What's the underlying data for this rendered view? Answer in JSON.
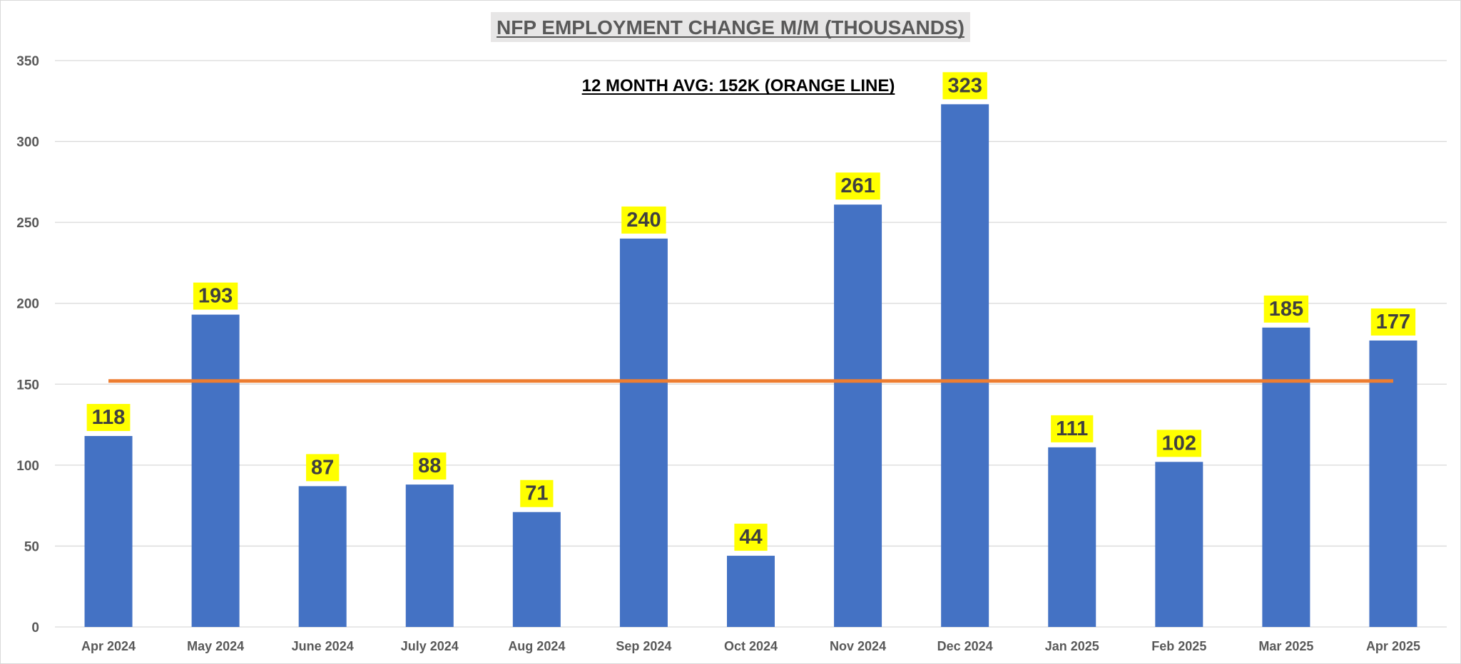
{
  "chart_data": {
    "type": "bar",
    "title": "NFP EMPLOYMENT CHANGE M/M (THOUSANDS)",
    "annotation": "12 MONTH AVG: 152K (ORANGE LINE)",
    "categories": [
      "Apr 2024",
      "May 2024",
      "June 2024",
      "July 2024",
      "Aug 2024",
      "Sep 2024",
      "Oct 2024",
      "Nov 2024",
      "Dec 2024",
      "Jan 2025",
      "Feb 2025",
      "Mar 2025",
      "Apr 2025"
    ],
    "values": [
      118,
      193,
      87,
      88,
      71,
      240,
      44,
      261,
      323,
      111,
      102,
      185,
      177
    ],
    "data_labels": [
      "118",
      "193",
      "87",
      "88",
      "71",
      "240",
      "44",
      "261",
      "323",
      "111",
      "102",
      "185",
      "177"
    ],
    "average_line": 152,
    "ylim": [
      0,
      350
    ],
    "yticks": [
      0,
      50,
      100,
      150,
      200,
      250,
      300,
      350
    ],
    "ytick_labels": [
      "0",
      "50",
      "100",
      "150",
      "200",
      "250",
      "300",
      "350"
    ],
    "grid": true,
    "xlabel": "",
    "ylabel": "",
    "colors": {
      "bar": "#4472C4",
      "average_line": "#ED7D31",
      "data_label_bg": "#FFFF00",
      "title_bg": "#E7E6E6",
      "grid": "#D9D9D9",
      "axis_text": "#595959"
    }
  }
}
